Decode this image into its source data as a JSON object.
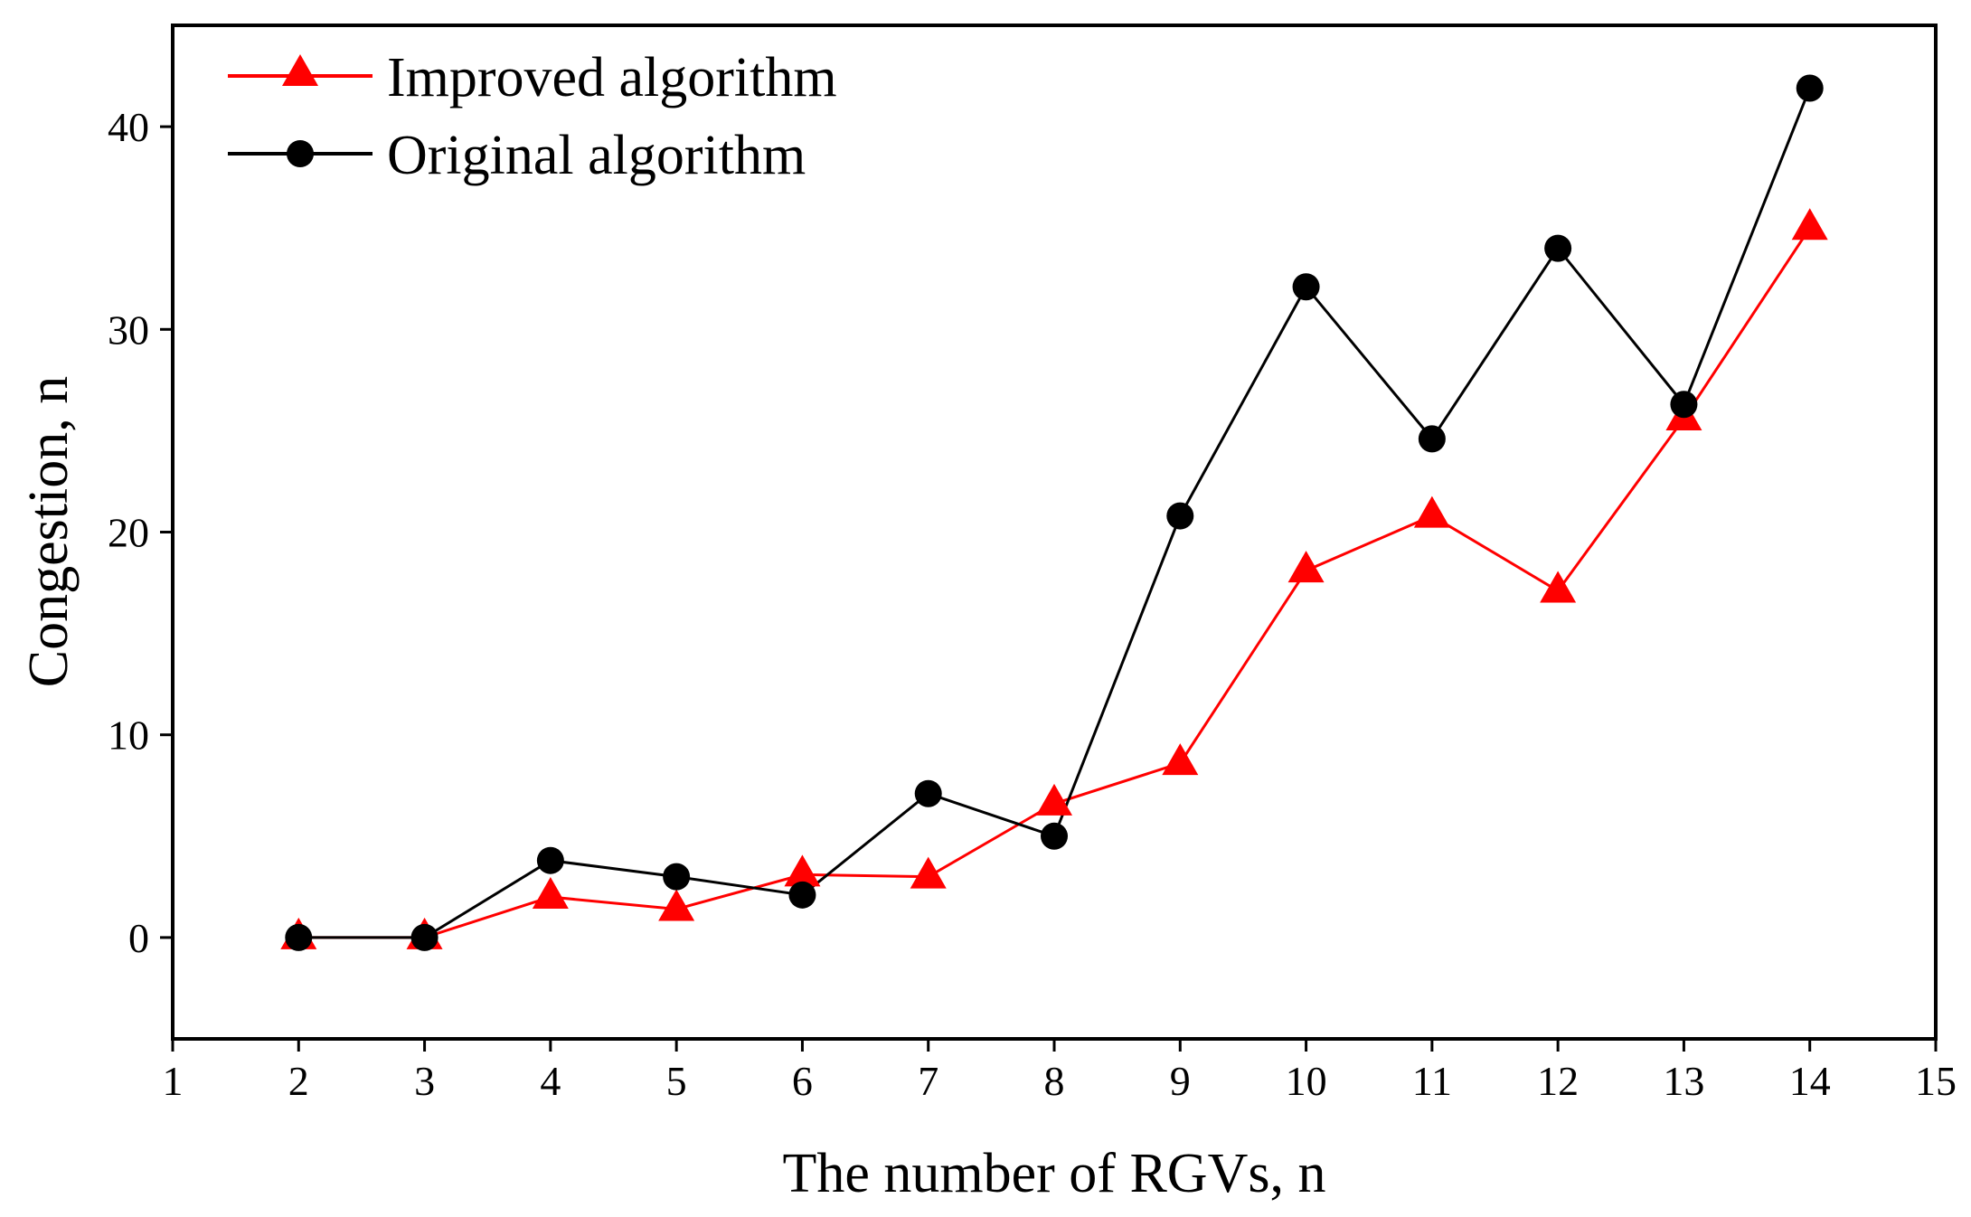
{
  "chart_data": {
    "type": "line",
    "title": "",
    "xlabel": "The number of RGVs, n",
    "ylabel": "Congestion, n",
    "xlim": [
      1,
      15
    ],
    "ylim": [
      -5,
      45
    ],
    "xticks": [
      1,
      2,
      3,
      4,
      5,
      6,
      7,
      8,
      9,
      10,
      11,
      12,
      13,
      14,
      15
    ],
    "yticks": [
      0,
      10,
      20,
      30,
      40
    ],
    "grid": false,
    "legend_position": "top-left",
    "x": [
      2,
      3,
      4,
      5,
      6,
      7,
      8,
      9,
      10,
      11,
      12,
      13,
      14
    ],
    "series": [
      {
        "name": "Improved algorithm",
        "color": "#ff0000",
        "marker": "triangle",
        "values": [
          0,
          0,
          2,
          1.4,
          3.1,
          3,
          6.6,
          8.6,
          18.1,
          20.8,
          17.1,
          25.6,
          35
        ]
      },
      {
        "name": "Original algorithm",
        "color": "#000000",
        "marker": "circle",
        "values": [
          0,
          0,
          3.8,
          3,
          2.1,
          7.1,
          5,
          20.8,
          32.1,
          24.6,
          34,
          26.3,
          41.9
        ]
      }
    ]
  }
}
